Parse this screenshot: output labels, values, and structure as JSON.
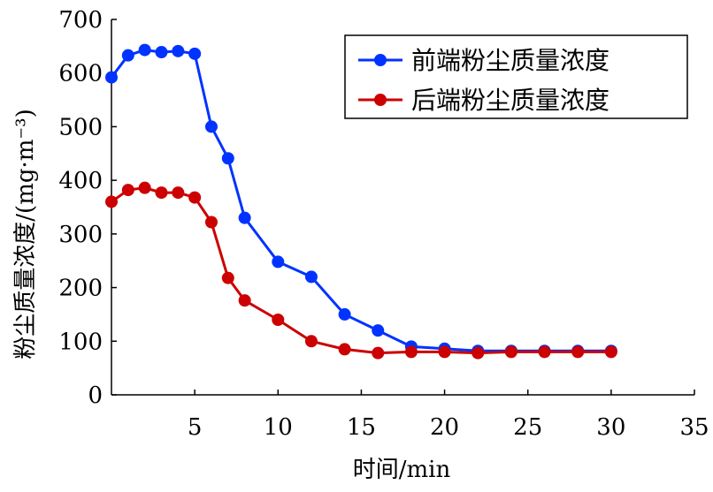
{
  "chart_data": {
    "type": "line",
    "xlabel": "时间/min",
    "ylabel": "粉尘质量浓度/(mg·m⁻³)",
    "xlim": [
      0,
      35
    ],
    "ylim": [
      0,
      700
    ],
    "xticks": [
      5,
      10,
      15,
      20,
      25,
      30,
      35
    ],
    "yticks": [
      0,
      100,
      200,
      300,
      400,
      500,
      600,
      700
    ],
    "grid": false,
    "legend_position": "top-right",
    "series": [
      {
        "name": "前端粉尘质量浓度",
        "color": "#0033ff",
        "points": [
          {
            "x": 0,
            "y": 592
          },
          {
            "x": 1,
            "y": 633
          },
          {
            "x": 2,
            "y": 643
          },
          {
            "x": 3,
            "y": 639
          },
          {
            "x": 4,
            "y": 641
          },
          {
            "x": 5,
            "y": 636
          },
          {
            "x": 6,
            "y": 500
          },
          {
            "x": 7,
            "y": 441
          },
          {
            "x": 8,
            "y": 330
          },
          {
            "x": 10,
            "y": 248
          },
          {
            "x": 12,
            "y": 220
          },
          {
            "x": 14,
            "y": 150
          },
          {
            "x": 16,
            "y": 120
          },
          {
            "x": 18,
            "y": 90
          },
          {
            "x": 20,
            "y": 86
          },
          {
            "x": 22,
            "y": 82
          },
          {
            "x": 24,
            "y": 82
          },
          {
            "x": 26,
            "y": 82
          },
          {
            "x": 28,
            "y": 82
          },
          {
            "x": 30,
            "y": 82
          }
        ]
      },
      {
        "name": "后端粉尘质量浓度",
        "color": "#cc0000",
        "points": [
          {
            "x": 0,
            "y": 360
          },
          {
            "x": 1,
            "y": 382
          },
          {
            "x": 2,
            "y": 386
          },
          {
            "x": 3,
            "y": 377
          },
          {
            "x": 4,
            "y": 377
          },
          {
            "x": 5,
            "y": 368
          },
          {
            "x": 6,
            "y": 322
          },
          {
            "x": 7,
            "y": 218
          },
          {
            "x": 8,
            "y": 176
          },
          {
            "x": 10,
            "y": 140
          },
          {
            "x": 12,
            "y": 100
          },
          {
            "x": 14,
            "y": 85
          },
          {
            "x": 16,
            "y": 78
          },
          {
            "x": 18,
            "y": 80
          },
          {
            "x": 20,
            "y": 80
          },
          {
            "x": 22,
            "y": 78
          },
          {
            "x": 24,
            "y": 80
          },
          {
            "x": 26,
            "y": 80
          },
          {
            "x": 28,
            "y": 80
          },
          {
            "x": 30,
            "y": 80
          }
        ]
      }
    ]
  }
}
